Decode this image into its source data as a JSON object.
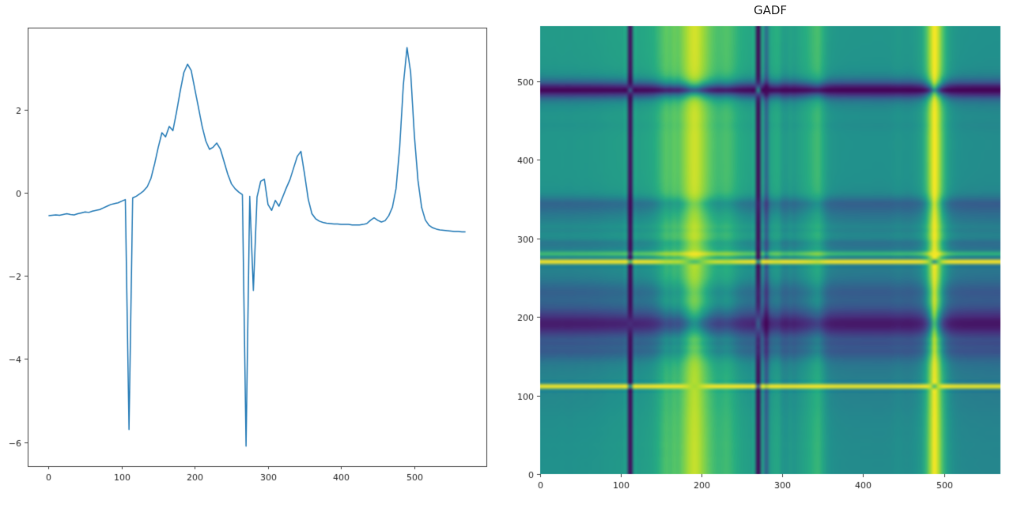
{
  "figure": {
    "background": "#ffffff"
  },
  "chart_data": [
    {
      "type": "line",
      "title": "",
      "xlabel": "",
      "ylabel": "",
      "legend": "none",
      "grid": false,
      "line_color": "#1f77b4",
      "frame_color": "#444444",
      "tick_color": "#262626",
      "xlim": [
        -28.5,
        598.5
      ],
      "ylim": [
        -6.58,
        3.98
      ],
      "xticks": [
        0,
        100,
        200,
        300,
        400,
        500
      ],
      "yticks": [
        2,
        0,
        -2,
        -4,
        -6
      ],
      "x_start": 0,
      "x_step": 5,
      "values": [
        -0.55,
        -0.54,
        -0.53,
        -0.54,
        -0.52,
        -0.5,
        -0.52,
        -0.53,
        -0.5,
        -0.48,
        -0.46,
        -0.47,
        -0.44,
        -0.42,
        -0.4,
        -0.36,
        -0.32,
        -0.28,
        -0.26,
        -0.24,
        -0.2,
        -0.16,
        -5.7,
        -0.12,
        -0.08,
        -0.02,
        0.05,
        0.15,
        0.35,
        0.7,
        1.1,
        1.45,
        1.35,
        1.6,
        1.5,
        1.95,
        2.45,
        2.9,
        3.1,
        2.95,
        2.5,
        2.05,
        1.6,
        1.25,
        1.05,
        1.1,
        1.2,
        1.05,
        0.75,
        0.45,
        0.22,
        0.1,
        0.02,
        -0.04,
        -6.1,
        -0.08,
        -2.35,
        -0.1,
        0.28,
        0.33,
        -0.28,
        -0.42,
        -0.18,
        -0.32,
        -0.1,
        0.12,
        0.32,
        0.6,
        0.88,
        1.0,
        0.45,
        -0.15,
        -0.5,
        -0.62,
        -0.68,
        -0.71,
        -0.73,
        -0.74,
        -0.75,
        -0.75,
        -0.76,
        -0.76,
        -0.76,
        -0.77,
        -0.77,
        -0.77,
        -0.76,
        -0.74,
        -0.66,
        -0.6,
        -0.66,
        -0.7,
        -0.67,
        -0.55,
        -0.35,
        0.1,
        1.1,
        2.6,
        3.5,
        2.9,
        1.4,
        0.3,
        -0.35,
        -0.65,
        -0.78,
        -0.84,
        -0.87,
        -0.89,
        -0.9,
        -0.91,
        -0.92,
        -0.93,
        -0.93,
        -0.94,
        -0.94
      ]
    },
    {
      "type": "heatmap",
      "title": "GADF",
      "colormap": "viridis",
      "source_series": 0,
      "transform": "gramian_angular_difference_field",
      "value_range": [
        -1,
        1
      ],
      "extent": [
        0,
        570,
        0,
        570
      ],
      "origin": "lower",
      "xticks": [
        0,
        100,
        200,
        300,
        400,
        500
      ],
      "yticks": [
        0,
        100,
        200,
        300,
        400,
        500
      ],
      "tick_color": "#262626"
    }
  ]
}
